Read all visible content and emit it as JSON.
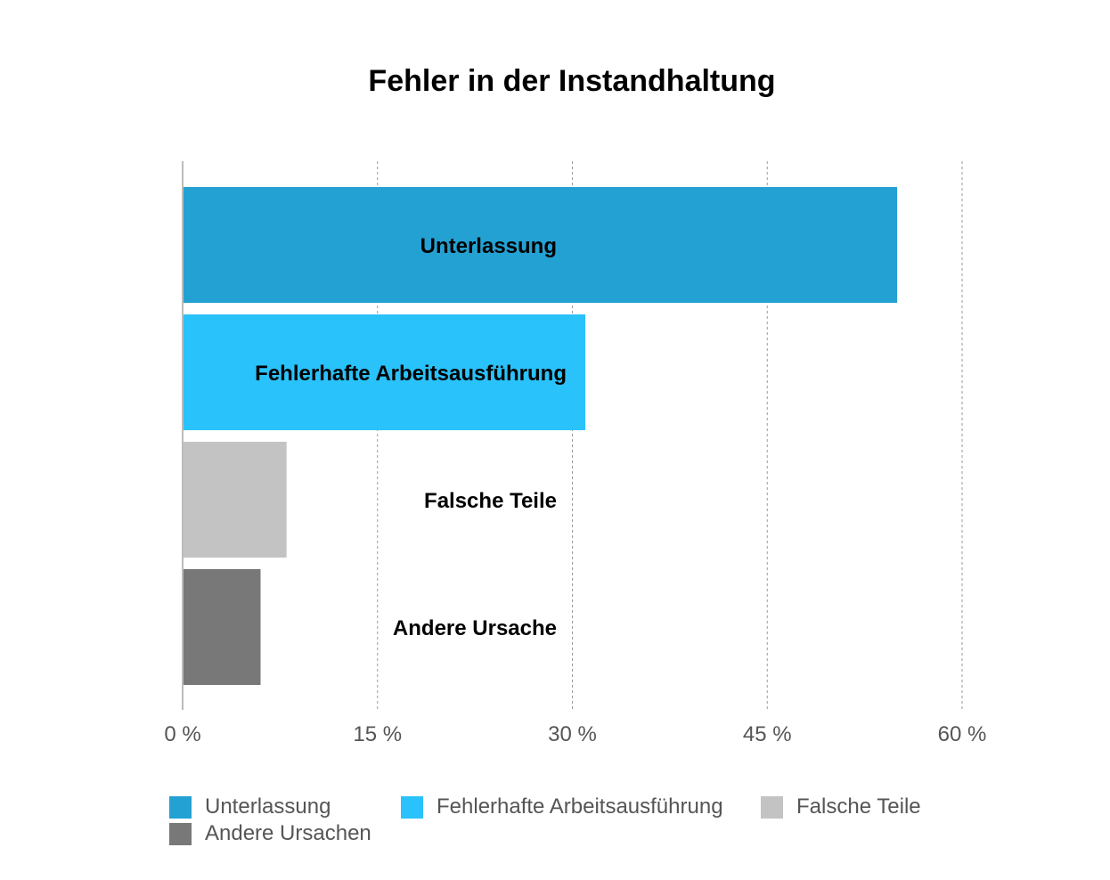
{
  "chart_data": {
    "type": "bar",
    "orientation": "horizontal",
    "title": "Fehler in der Instandhaltung",
    "categories": [
      "Unterlassung",
      "Fehlerhafte Arbeitsausführung",
      "Falsche Teile",
      "Andere Ursache"
    ],
    "values": [
      55,
      31,
      8,
      6
    ],
    "colors": [
      "#24a1d3",
      "#29c2fa",
      "#c3c3c3",
      "#787878"
    ],
    "xlim": [
      0,
      60
    ],
    "ticks": [
      0,
      15,
      30,
      45,
      60
    ],
    "tick_labels": [
      "0 %",
      "15 %",
      "30 %",
      "45 %",
      "60 %"
    ],
    "unit": "%",
    "grid": true,
    "legend_position": "bottom",
    "legend": [
      {
        "label": "Unterlassung",
        "color": "#24a1d3"
      },
      {
        "label": "Fehlerhafte Arbeitsausführung",
        "color": "#29c2fa"
      },
      {
        "label": "Falsche Teile",
        "color": "#c3c3c3"
      },
      {
        "label": "Andere Ursachen",
        "color": "#787878"
      }
    ]
  }
}
